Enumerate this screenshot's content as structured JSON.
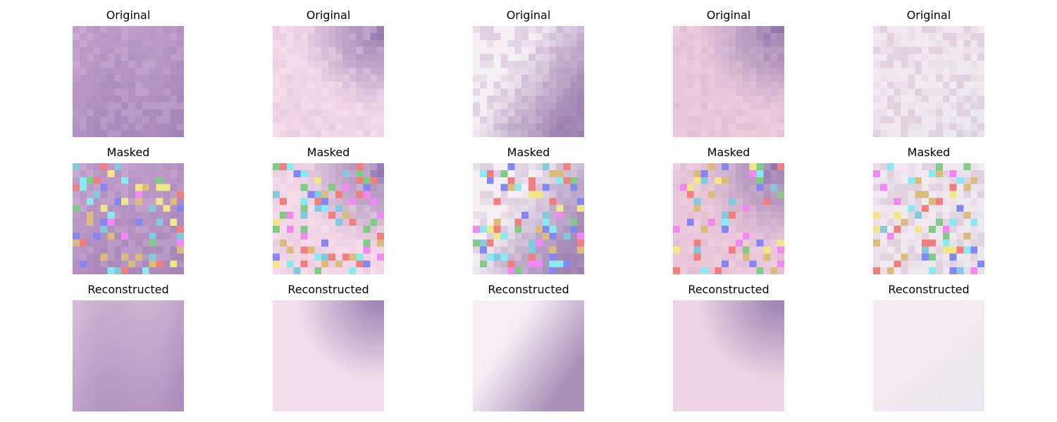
{
  "rows": [
    {
      "label": "Original"
    },
    {
      "label": "Masked"
    },
    {
      "label": "Reconstructed"
    }
  ],
  "columns": [
    {
      "palette": [
        "#c9a6d0",
        "#b993c4",
        "#a585b8",
        "#d6b8da",
        "#9c7bb0"
      ],
      "style": "diagonal"
    },
    {
      "palette": [
        "#f2d6e6",
        "#e8c4dc",
        "#d7b9d3",
        "#fce9f2",
        "#7d64a4"
      ],
      "style": "corner"
    },
    {
      "palette": [
        "#f6f6f6",
        "#f3e6f0",
        "#c6a3c6",
        "#b08fbd",
        "#8f72a6"
      ],
      "style": "diag-right"
    },
    {
      "palette": [
        "#eac8da",
        "#e2bcd5",
        "#f2d9e6",
        "#d3b2cc",
        "#7f66a2"
      ],
      "style": "corner"
    },
    {
      "palette": [
        "#f4f4f6",
        "#ecdbe6",
        "#d8c0d3",
        "#c19cb7",
        "#e8e8ee"
      ],
      "style": "bright"
    }
  ],
  "mask_colors": [
    "#f27ef2",
    "#7fe9f2",
    "#f1e67d",
    "#7a7af0",
    "#f07272",
    "#76c67c",
    "#7ac3db",
    "#d8b670"
  ]
}
